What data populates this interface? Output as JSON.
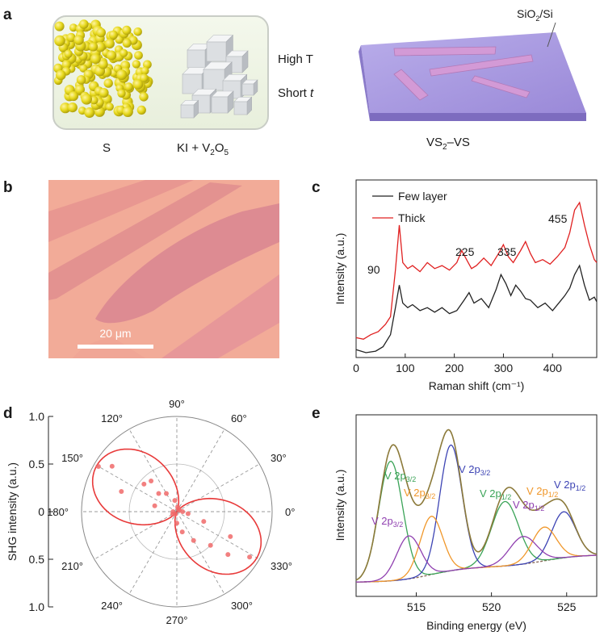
{
  "panel_letters": {
    "a": "a",
    "b": "b",
    "c": "c",
    "d": "d",
    "e": "e"
  },
  "panel_a": {
    "sulfur_label": "S",
    "precursor_label_main": "KI + V",
    "precursor_sub1": "2",
    "precursor_mid": "O",
    "precursor_sub2": "5",
    "condition_temperature": "High T",
    "condition_time_word": "Short ",
    "condition_time_symbol": "t",
    "substrate_label_a": "SiO",
    "substrate_label_sub": "2",
    "substrate_label_b": "/Si",
    "product_label_a": "VS",
    "product_label_sub": "2",
    "product_label_b": "–VS",
    "colors": {
      "sulfur": "#e6d81c",
      "salt": "#d9dcdf",
      "substrate_top": "#a99ae0",
      "substrate_side": "#7d6cbf",
      "flake": "#d39ad6"
    }
  },
  "panel_b": {
    "scale_bar_label": "20 μm",
    "colors": {
      "background": "#f2ab98",
      "flake": "#dd8d8f"
    }
  },
  "panel_c": {
    "chart_data": {
      "type": "line",
      "xlabel": "Raman shift (cm⁻¹)",
      "ylabel": "Intensity (a.u.)",
      "xlim": [
        0,
        490
      ],
      "xticks": [
        "0",
        "100",
        "200",
        "300",
        "400"
      ],
      "legend_position": "top-left",
      "peak_labels": [
        "90",
        "225",
        "335",
        "455"
      ],
      "series": [
        {
          "name": "Few layer",
          "color": "#222222",
          "x": [
            0,
            20,
            40,
            55,
            70,
            80,
            88,
            95,
            105,
            115,
            130,
            145,
            160,
            175,
            190,
            205,
            220,
            230,
            240,
            255,
            270,
            285,
            295,
            305,
            315,
            325,
            335,
            345,
            355,
            370,
            385,
            400,
            415,
            425,
            435,
            445,
            455,
            465,
            475,
            485,
            490
          ],
          "y": [
            0.02,
            0.0,
            0.01,
            0.04,
            0.12,
            0.3,
            0.45,
            0.33,
            0.3,
            0.32,
            0.28,
            0.3,
            0.27,
            0.3,
            0.26,
            0.28,
            0.35,
            0.4,
            0.33,
            0.36,
            0.3,
            0.42,
            0.52,
            0.46,
            0.38,
            0.45,
            0.41,
            0.36,
            0.35,
            0.3,
            0.33,
            0.28,
            0.34,
            0.38,
            0.43,
            0.52,
            0.58,
            0.45,
            0.35,
            0.37,
            0.34
          ]
        },
        {
          "name": "Thick",
          "color": "#e02020",
          "x": [
            0,
            15,
            30,
            45,
            60,
            70,
            80,
            88,
            95,
            105,
            115,
            130,
            145,
            160,
            175,
            190,
            205,
            215,
            225,
            235,
            245,
            260,
            275,
            290,
            300,
            310,
            320,
            335,
            345,
            355,
            365,
            380,
            395,
            410,
            425,
            435,
            445,
            455,
            465,
            475,
            485,
            490
          ],
          "y": [
            0.1,
            0.09,
            0.12,
            0.14,
            0.19,
            0.24,
            0.55,
            0.85,
            0.6,
            0.56,
            0.58,
            0.54,
            0.6,
            0.56,
            0.58,
            0.55,
            0.6,
            0.68,
            0.62,
            0.56,
            0.58,
            0.63,
            0.58,
            0.66,
            0.72,
            0.64,
            0.6,
            0.68,
            0.74,
            0.66,
            0.6,
            0.62,
            0.59,
            0.64,
            0.7,
            0.8,
            0.95,
            1.0,
            0.85,
            0.72,
            0.62,
            0.6
          ]
        }
      ]
    }
  },
  "panel_d": {
    "chart_data": {
      "type": "scatter",
      "coordinate_system": "polar",
      "ylabel": "SHG intensity (a.u.)",
      "radial_ticks": [
        "1.0",
        "0.5",
        "0",
        "0.5",
        "1.0"
      ],
      "angle_labels": [
        "0°",
        "30°",
        "60°",
        "90°",
        "120°",
        "150°",
        "180°",
        "210°",
        "240°",
        "270°",
        "300°",
        "330°"
      ],
      "fit_color": "#e83a3a",
      "points": [
        {
          "angle": 150,
          "r": 0.95
        },
        {
          "angle": 145,
          "r": 0.83
        },
        {
          "angle": 140,
          "r": 0.45
        },
        {
          "angle": 130,
          "r": 0.42
        },
        {
          "angle": 135,
          "r": 0.27
        },
        {
          "angle": 160,
          "r": 0.62
        },
        {
          "angle": 165,
          "r": 0.24
        },
        {
          "angle": 120,
          "r": 0.22
        },
        {
          "angle": 100,
          "r": 0.12
        },
        {
          "angle": 80,
          "r": 0.05
        },
        {
          "angle": 60,
          "r": 0.03
        },
        {
          "angle": 30,
          "r": 0.03
        },
        {
          "angle": 0,
          "r": 0.06
        },
        {
          "angle": 180,
          "r": 0.04
        },
        {
          "angle": 210,
          "r": 0.05
        },
        {
          "angle": 240,
          "r": 0.03
        },
        {
          "angle": 270,
          "r": 0.12
        },
        {
          "angle": 285,
          "r": 0.22
        },
        {
          "angle": 300,
          "r": 0.35
        },
        {
          "angle": 315,
          "r": 0.5
        },
        {
          "angle": 320,
          "r": 0.7
        },
        {
          "angle": 328,
          "r": 0.9
        },
        {
          "angle": 335,
          "r": 0.62
        },
        {
          "angle": 340,
          "r": 0.3
        },
        {
          "angle": 350,
          "r": 0.12
        }
      ]
    }
  },
  "panel_e": {
    "chart_data": {
      "type": "line",
      "xlabel": "Binding energy (eV)",
      "ylabel": "Intensity (a.u.)",
      "xlim": [
        511,
        527
      ],
      "xticks": [
        "515",
        "520",
        "525"
      ],
      "peak_labels": [
        {
          "text": "V 2p",
          "sub": "3/2",
          "color": "#3aa357"
        },
        {
          "text": "V 2p",
          "sub": "3/2",
          "color": "#3d44b4"
        },
        {
          "text": "V 2p",
          "sub": "3/2",
          "color": "#f0972a"
        },
        {
          "text": "V 2p",
          "sub": "1/2",
          "color": "#3aa357"
        },
        {
          "text": "V 2p",
          "sub": "1/2",
          "color": "#f0972a"
        },
        {
          "text": "V 2p",
          "sub": "1/2",
          "color": "#9040b0"
        },
        {
          "text": "V  2p",
          "sub": "1/2",
          "color": "#3d44b4"
        },
        {
          "text": "V 2p",
          "sub": "3/2",
          "color": "#9040b0"
        }
      ],
      "background_color": "#8a6a5a",
      "envelope_color": "#8c7a3a",
      "components": [
        {
          "name": "green",
          "color": "#3aa357",
          "peaks": [
            [
              513.3,
              0.78,
              0.8
            ],
            [
              520.9,
              0.42,
              0.9
            ]
          ]
        },
        {
          "name": "blue",
          "color": "#3d44b4",
          "peaks": [
            [
              517.3,
              0.82,
              0.75
            ],
            [
              524.8,
              0.3,
              0.8
            ]
          ]
        },
        {
          "name": "orange",
          "color": "#f0972a",
          "peaks": [
            [
              516.0,
              0.38,
              0.75
            ],
            [
              523.5,
              0.22,
              0.8
            ]
          ]
        },
        {
          "name": "purple",
          "color": "#9040b0",
          "peaks": [
            [
              514.5,
              0.28,
              0.8
            ],
            [
              522.1,
              0.18,
              0.9
            ]
          ]
        }
      ]
    }
  }
}
